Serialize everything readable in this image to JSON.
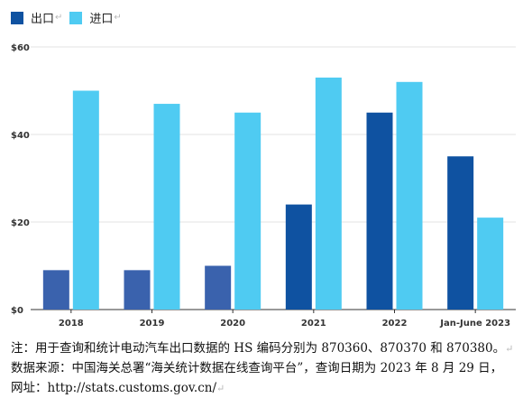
{
  "legend": [
    {
      "label": "出口",
      "color": "#0f52a1"
    },
    {
      "label": "进口",
      "color": "#4fcbf2"
    }
  ],
  "return_mark": "↵",
  "chart_data": {
    "type": "bar",
    "categories": [
      "2018",
      "2019",
      "2020",
      "2021",
      "2022",
      "Jan-June 2023"
    ],
    "series": [
      {
        "name": "出口",
        "values": [
          9,
          9,
          10,
          24,
          45,
          35
        ],
        "color": "#0f52a1"
      },
      {
        "name": "进口",
        "values": [
          50,
          47,
          45,
          53,
          52,
          21
        ],
        "color": "#4fcbf2"
      }
    ],
    "ylim": [
      0,
      60
    ],
    "yticks": [
      {
        "value": 0,
        "label": "$0"
      },
      {
        "value": 20,
        "label": "$20"
      },
      {
        "value": 40,
        "label": "$40"
      },
      {
        "value": 60,
        "label": "$60"
      }
    ],
    "grid": true,
    "legend_position": "top-left",
    "note": "2018–2020 出口 bars shown in a lighter blue"
  },
  "notes": {
    "line1": "注：用于查询和统计电动汽车出口数据的 HS 编码分别为 870360、870370 和 870380。",
    "line2": "数据来源：中国海关总署“海关统计数据在线查询平台”，查询日期为 2023 年 8 月 29 日，",
    "line3": "网址：http://stats.customs.gov.cn/"
  }
}
